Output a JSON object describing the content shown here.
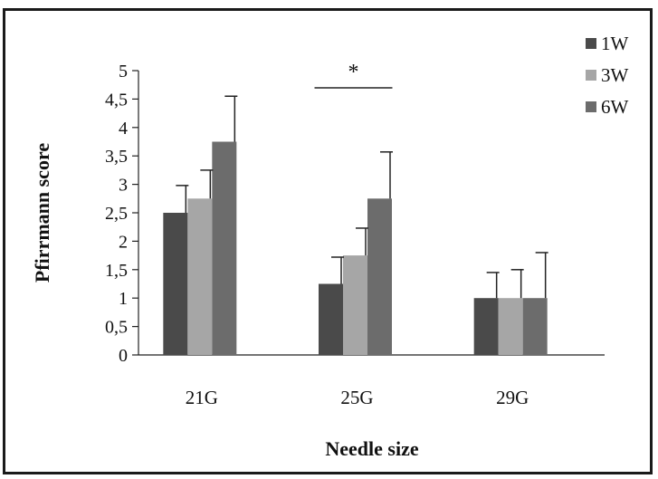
{
  "chart_data": {
    "type": "bar",
    "title": "",
    "xlabel": "Needle size",
    "ylabel": "Pfirrmann score",
    "categories": [
      "21G",
      "25G",
      "29G"
    ],
    "y_ticks": [
      "0",
      "0,5",
      "1",
      "1,5",
      "2",
      "2,5",
      "3",
      "3,5",
      "4",
      "4,5",
      "5"
    ],
    "ylim": [
      0,
      5
    ],
    "grid": false,
    "legend_position": "top-right",
    "series": [
      {
        "name": "1W",
        "color": "#4a4a4a",
        "values": [
          2.5,
          1.25,
          1.0
        ],
        "errors": [
          0.48,
          0.47,
          0.45
        ]
      },
      {
        "name": "3W",
        "color": "#a6a6a6",
        "values": [
          2.75,
          1.75,
          1.0
        ],
        "errors": [
          0.5,
          0.48,
          0.5
        ]
      },
      {
        "name": "6W",
        "color": "#6c6c6c",
        "values": [
          3.75,
          2.75,
          1.0
        ],
        "errors": [
          0.8,
          0.82,
          0.8
        ]
      }
    ],
    "annotations": [
      {
        "text": "*",
        "category": "25G"
      }
    ]
  }
}
